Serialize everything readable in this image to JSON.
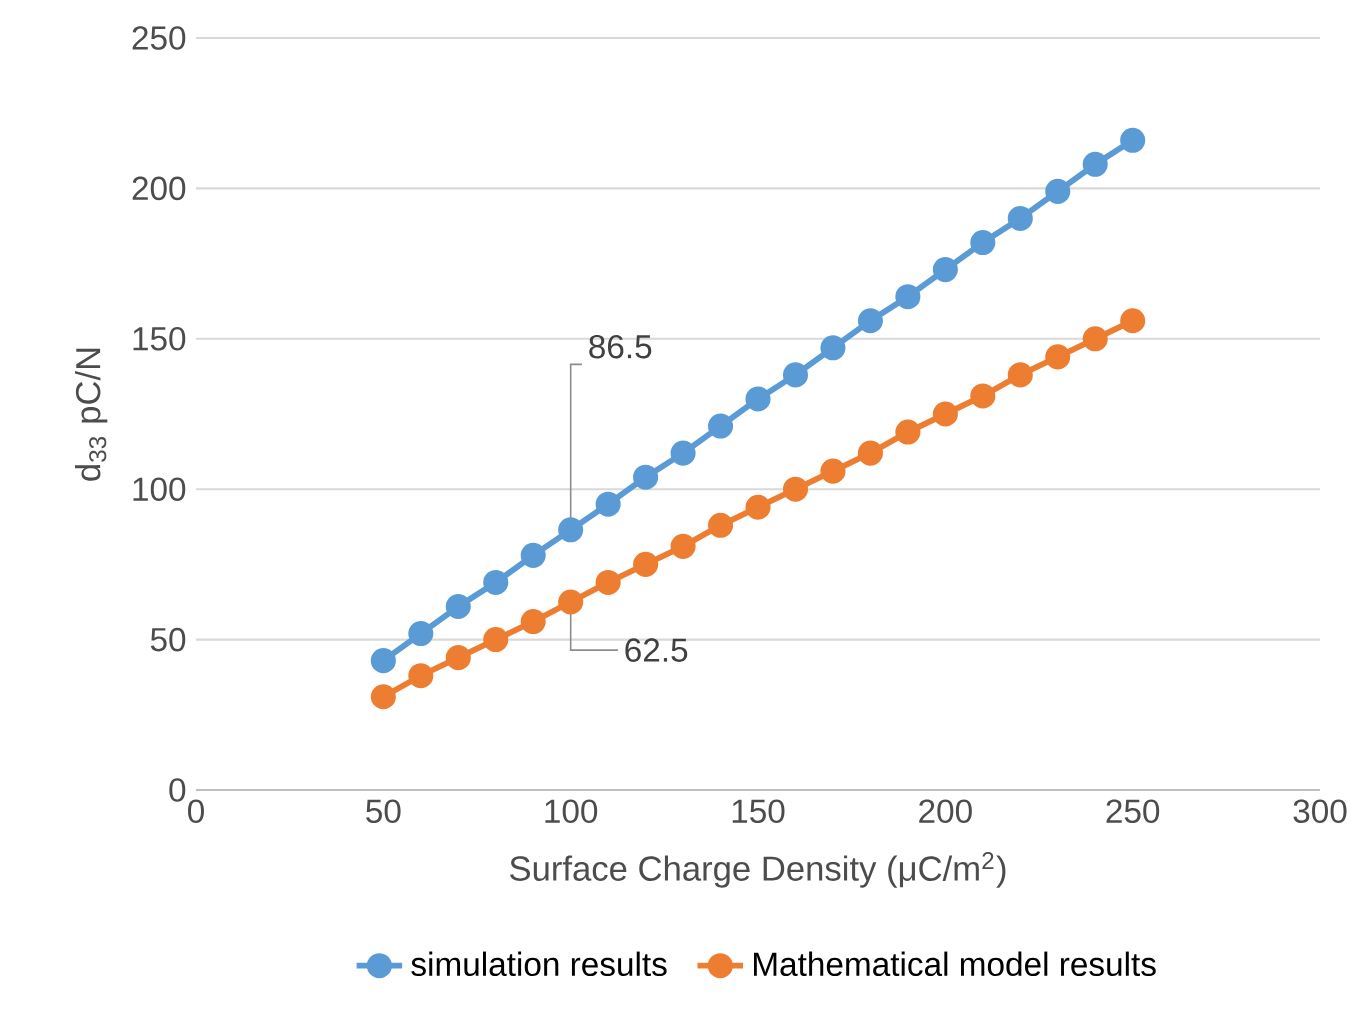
{
  "chart_data": {
    "type": "line",
    "xlabel": "Surface Charge Density (μC/m$^{2}$)",
    "ylabel": "d$_{33}$ pC/N",
    "x": [
      50,
      60,
      70,
      80,
      90,
      100,
      110,
      120,
      130,
      140,
      150,
      160,
      170,
      180,
      190,
      200,
      210,
      220,
      230,
      240,
      250
    ],
    "series": [
      {
        "name": "simulation results",
        "color": "#5b9bd5",
        "values": [
          43,
          52,
          61,
          69,
          78,
          86.5,
          95,
          104,
          112,
          121,
          130,
          138,
          147,
          156,
          164,
          173,
          182,
          190,
          199,
          208,
          216
        ]
      },
      {
        "name": "Mathematical model results",
        "color": "#ed7d31",
        "values": [
          31,
          38,
          44,
          50,
          56,
          62.5,
          69,
          75,
          81,
          88,
          94,
          100,
          106,
          112,
          119,
          125,
          131,
          138,
          144,
          150,
          156
        ]
      }
    ],
    "xlim": [
      0,
      300
    ],
    "xticks": [
      0,
      50,
      100,
      150,
      200,
      250,
      300
    ],
    "ylim": [
      0,
      250
    ],
    "yticks": [
      0,
      50,
      100,
      150,
      200,
      250
    ],
    "annotations": [
      {
        "text": "86.5",
        "x": 100,
        "y": 86.5
      },
      {
        "text": "62.5",
        "x": 100,
        "y": 62.5
      }
    ],
    "grid": "y",
    "legend": "bottom",
    "marker": "circle",
    "line_style": "solid"
  }
}
